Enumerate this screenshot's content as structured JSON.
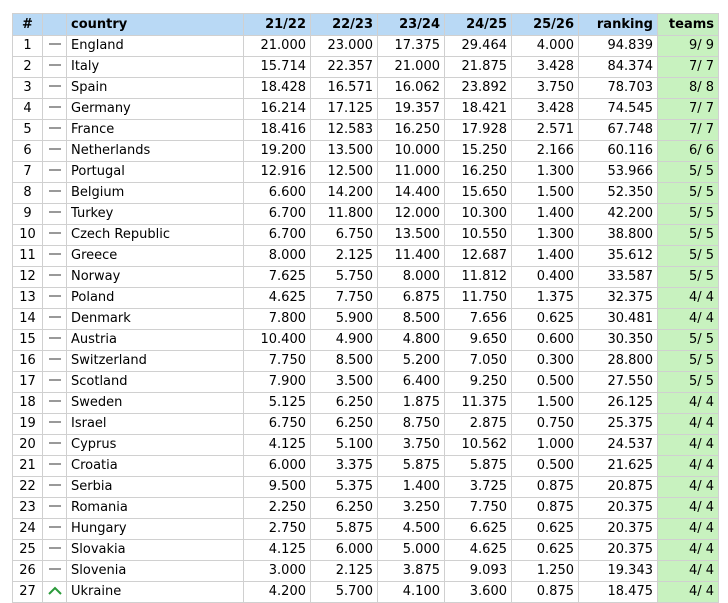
{
  "table": {
    "headers": [
      "#",
      "country",
      "21/22",
      "22/23",
      "23/24",
      "24/25",
      "25/26",
      "ranking",
      "teams"
    ],
    "rows": [
      [
        "1",
        "England",
        "21.000",
        "23.000",
        "17.375",
        "29.464",
        "4.000",
        "94.839",
        "9/ 9"
      ],
      [
        "2",
        "Italy",
        "15.714",
        "22.357",
        "21.000",
        "21.875",
        "3.428",
        "84.374",
        "7/ 7"
      ],
      [
        "3",
        "Spain",
        "18.428",
        "16.571",
        "16.062",
        "23.892",
        "3.750",
        "78.703",
        "8/ 8"
      ],
      [
        "4",
        "Germany",
        "16.214",
        "17.125",
        "19.357",
        "18.421",
        "3.428",
        "74.545",
        "7/ 7"
      ],
      [
        "5",
        "France",
        "18.416",
        "12.583",
        "16.250",
        "17.928",
        "2.571",
        "67.748",
        "7/ 7"
      ],
      [
        "6",
        "Netherlands",
        "19.200",
        "13.500",
        "10.000",
        "15.250",
        "2.166",
        "60.116",
        "6/ 6"
      ],
      [
        "7",
        "Portugal",
        "12.916",
        "12.500",
        "11.000",
        "16.250",
        "1.300",
        "53.966",
        "5/ 5"
      ],
      [
        "8",
        "Belgium",
        "6.600",
        "14.200",
        "14.400",
        "15.650",
        "1.500",
        "52.350",
        "5/ 5"
      ],
      [
        "9",
        "Turkey",
        "6.700",
        "11.800",
        "12.000",
        "10.300",
        "1.400",
        "42.200",
        "5/ 5"
      ],
      [
        "10",
        "Czech Republic",
        "6.700",
        "6.750",
        "13.500",
        "10.550",
        "1.300",
        "38.800",
        "5/ 5"
      ],
      [
        "11",
        "Greece",
        "8.000",
        "2.125",
        "11.400",
        "12.687",
        "1.400",
        "35.612",
        "5/ 5"
      ],
      [
        "12",
        "Norway",
        "7.625",
        "5.750",
        "8.000",
        "11.812",
        "0.400",
        "33.587",
        "5/ 5"
      ],
      [
        "13",
        "Poland",
        "4.625",
        "7.750",
        "6.875",
        "11.750",
        "1.375",
        "32.375",
        "4/ 4"
      ],
      [
        "14",
        "Denmark",
        "7.800",
        "5.900",
        "8.500",
        "7.656",
        "0.625",
        "30.481",
        "4/ 4"
      ],
      [
        "15",
        "Austria",
        "10.400",
        "4.900",
        "4.800",
        "9.650",
        "0.600",
        "30.350",
        "5/ 5"
      ],
      [
        "16",
        "Switzerland",
        "7.750",
        "8.500",
        "5.200",
        "7.050",
        "0.300",
        "28.800",
        "5/ 5"
      ],
      [
        "17",
        "Scotland",
        "7.900",
        "3.500",
        "6.400",
        "9.250",
        "0.500",
        "27.550",
        "5/ 5"
      ],
      [
        "18",
        "Sweden",
        "5.125",
        "6.250",
        "1.875",
        "11.375",
        "1.500",
        "26.125",
        "4/ 4"
      ],
      [
        "19",
        "Israel",
        "6.750",
        "6.250",
        "8.750",
        "2.875",
        "0.750",
        "25.375",
        "4/ 4"
      ],
      [
        "20",
        "Cyprus",
        "4.125",
        "5.100",
        "3.750",
        "10.562",
        "1.000",
        "24.537",
        "4/ 4"
      ],
      [
        "21",
        "Croatia",
        "6.000",
        "3.375",
        "5.875",
        "5.875",
        "0.500",
        "21.625",
        "4/ 4"
      ],
      [
        "22",
        "Serbia",
        "9.500",
        "5.375",
        "1.400",
        "3.725",
        "0.875",
        "20.875",
        "4/ 4"
      ],
      [
        "23",
        "Romania",
        "2.250",
        "6.250",
        "3.250",
        "7.750",
        "0.875",
        "20.375",
        "4/ 4"
      ],
      [
        "24",
        "Hungary",
        "2.750",
        "5.875",
        "4.500",
        "6.625",
        "0.625",
        "20.375",
        "4/ 4"
      ],
      [
        "25",
        "Slovakia",
        "4.125",
        "6.000",
        "5.000",
        "4.625",
        "0.625",
        "20.375",
        "4/ 4"
      ],
      [
        "26",
        "Slovenia",
        "3.000",
        "2.125",
        "3.875",
        "9.093",
        "1.250",
        "19.343",
        "4/ 4"
      ],
      [
        "27",
        "Ukraine",
        "4.200",
        "5.700",
        "4.100",
        "3.600",
        "0.875",
        "18.475",
        "4/ 4"
      ]
    ]
  }
}
